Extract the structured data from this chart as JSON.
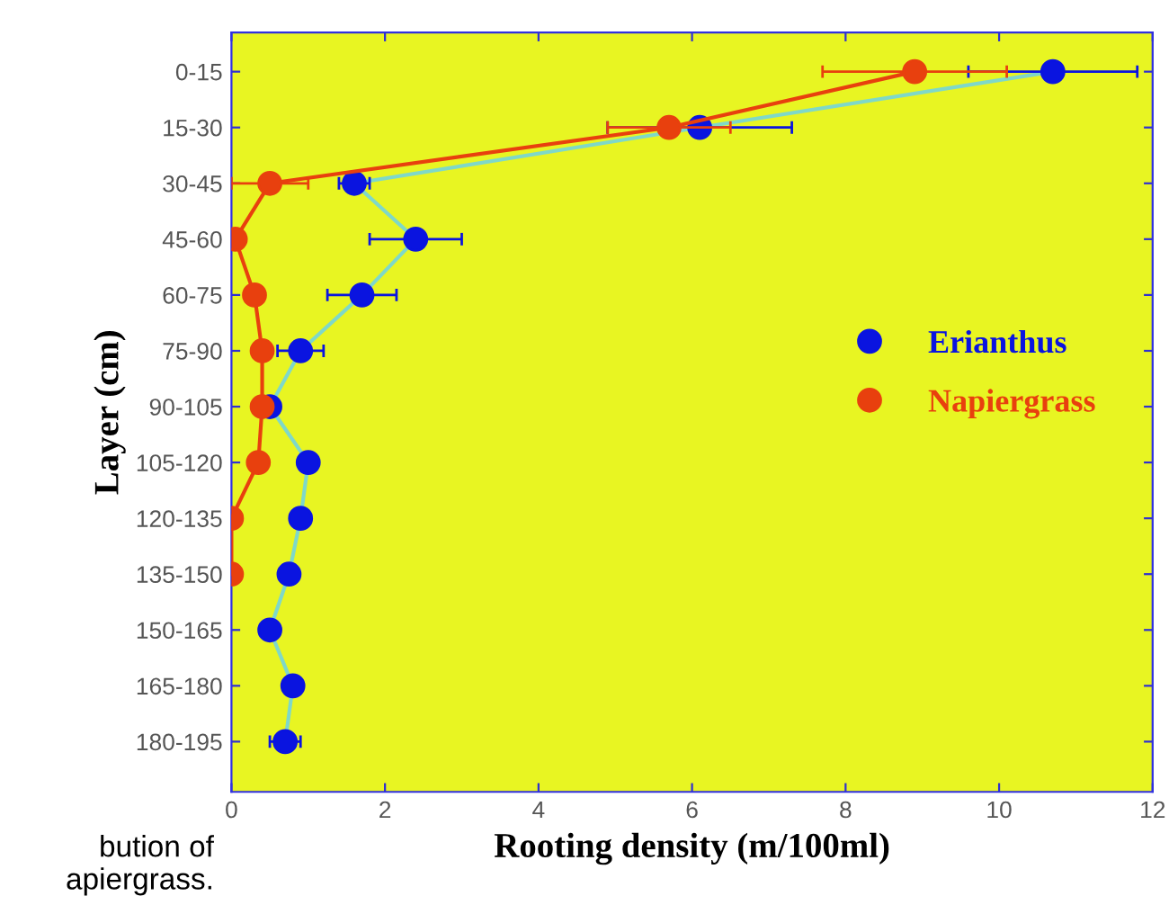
{
  "chart_data": {
    "type": "line",
    "orientation": "horizontal",
    "xlabel": "Rooting density (m/100ml)",
    "ylabel": "Layer (cm)",
    "categories": [
      "0-15",
      "15-30",
      "30-45",
      "45-60",
      "60-75",
      "75-90",
      "90-105",
      "105-120",
      "120-135",
      "135-150",
      "150-165",
      "165-180",
      "180-195"
    ],
    "series": [
      {
        "name": "Erianthus",
        "color": "#0a14e0",
        "values": [
          10.7,
          6.1,
          1.6,
          2.4,
          1.7,
          0.9,
          0.5,
          1.0,
          0.9,
          0.75,
          0.5,
          0.8,
          0.7
        ],
        "errors": [
          1.1,
          1.2,
          0.2,
          0.6,
          0.45,
          0.3,
          null,
          null,
          null,
          null,
          null,
          null,
          0.2
        ]
      },
      {
        "name": "Napiergrass",
        "color": "#e8400e",
        "values": [
          8.9,
          5.7,
          0.5,
          0.05,
          0.3,
          0.4,
          0.4,
          0.35,
          0.0,
          0.0,
          null,
          null,
          null
        ],
        "errors": [
          1.2,
          0.8,
          0.5,
          null,
          null,
          null,
          null,
          null,
          null,
          null,
          null,
          null,
          null
        ]
      }
    ],
    "xlim": [
      0,
      12
    ],
    "xticks": [
      0,
      2,
      4,
      6,
      8,
      10,
      12
    ],
    "marker": "circle",
    "line_style": "solid",
    "grid": false,
    "legend": "right",
    "annotations": [
      "bution of",
      "apiergrass."
    ]
  }
}
